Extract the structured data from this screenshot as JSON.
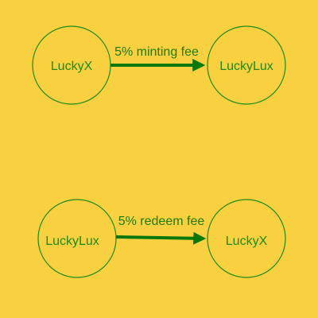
{
  "colors": {
    "background": "#f8d040",
    "node_stroke": "#1f8a18",
    "node_text": "#1f8a18",
    "arrow": "#0a780a",
    "edge_text": "#1f7a10"
  },
  "diagrams": [
    {
      "source": "LuckyX",
      "target": "LuckyLux",
      "edge_label": "5% minting fee"
    },
    {
      "source": "LuckyLux",
      "target": "LuckyX",
      "edge_label": "5% redeem fee"
    }
  ]
}
